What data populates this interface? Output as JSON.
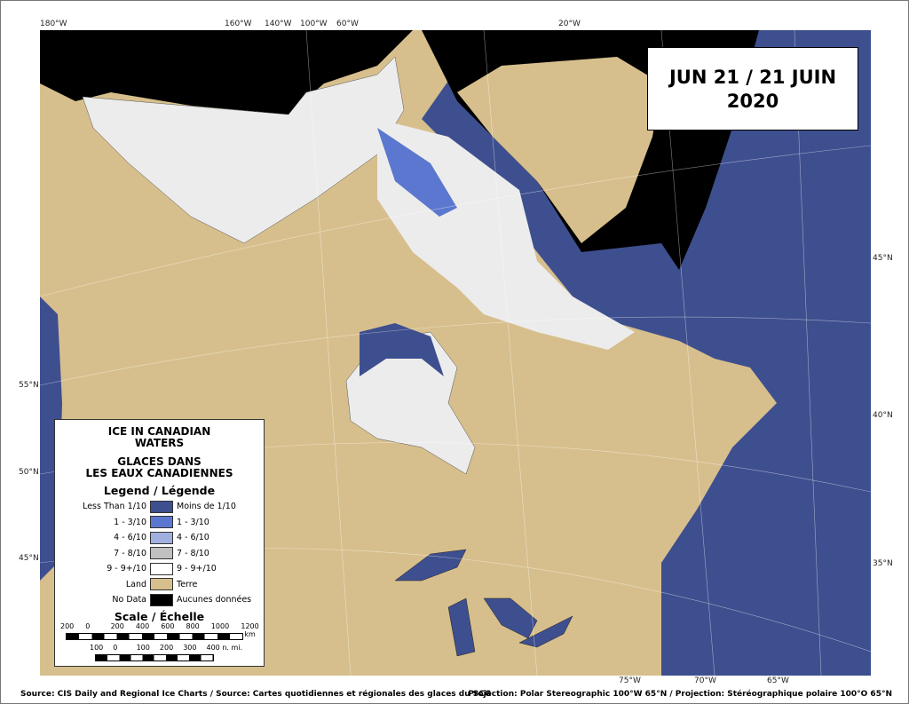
{
  "date": {
    "line1": "JUN 21 / 21 JUIN",
    "line2": "2020"
  },
  "graticule": {
    "top": [
      "180°W",
      "160°W",
      "140°W",
      "100°W",
      "60°W",
      "20°W"
    ],
    "left": [
      "55°N",
      "50°N",
      "45°N"
    ],
    "right": [
      "45°N",
      "40°N",
      "35°N"
    ],
    "bottom": [
      "75°W",
      "70°W",
      "65°W"
    ]
  },
  "legend": {
    "title_en": [
      "ICE IN CANADIAN",
      "WATERS"
    ],
    "title_fr": [
      "GLACES DANS",
      "LES EAUX CANADIENNES"
    ],
    "heading": "Legend / Légende",
    "items": [
      {
        "en": "Less Than 1/10",
        "fr": "Moins de 1/10",
        "color": "#3e4f8f"
      },
      {
        "en": "1 - 3/10",
        "fr": "1 - 3/10",
        "color": "#5b77cf"
      },
      {
        "en": "4 - 6/10",
        "fr": "4 - 6/10",
        "color": "#9fb0de"
      },
      {
        "en": "7 - 8/10",
        "fr": "7 - 8/10",
        "color": "#c0c0c0"
      },
      {
        "en": "9 - 9+/10",
        "fr": "9 - 9+/10",
        "color": "#ffffff"
      },
      {
        "en": "Land",
        "fr": "Terre",
        "color": "#d7bf8d"
      },
      {
        "en": "No Data",
        "fr": "Aucunes données",
        "color": "#000000"
      }
    ],
    "scale_heading": "Scale / Échelle",
    "km_ticks": [
      "200",
      "0",
      "200",
      "400",
      "600",
      "800",
      "1000",
      "1200 km"
    ],
    "nmi_ticks": [
      "100",
      "0",
      "100",
      "200",
      "300",
      "400 n. mi."
    ]
  },
  "footer": {
    "source": "Source: CIS Daily and Regional Ice Charts / Source: Cartes quotidiennes et régionales des glaces du SCG",
    "projection": "Projection: Polar Stereographic 100°W 65°N / Projection: Stéréographique polaire 100°O 65°N"
  }
}
